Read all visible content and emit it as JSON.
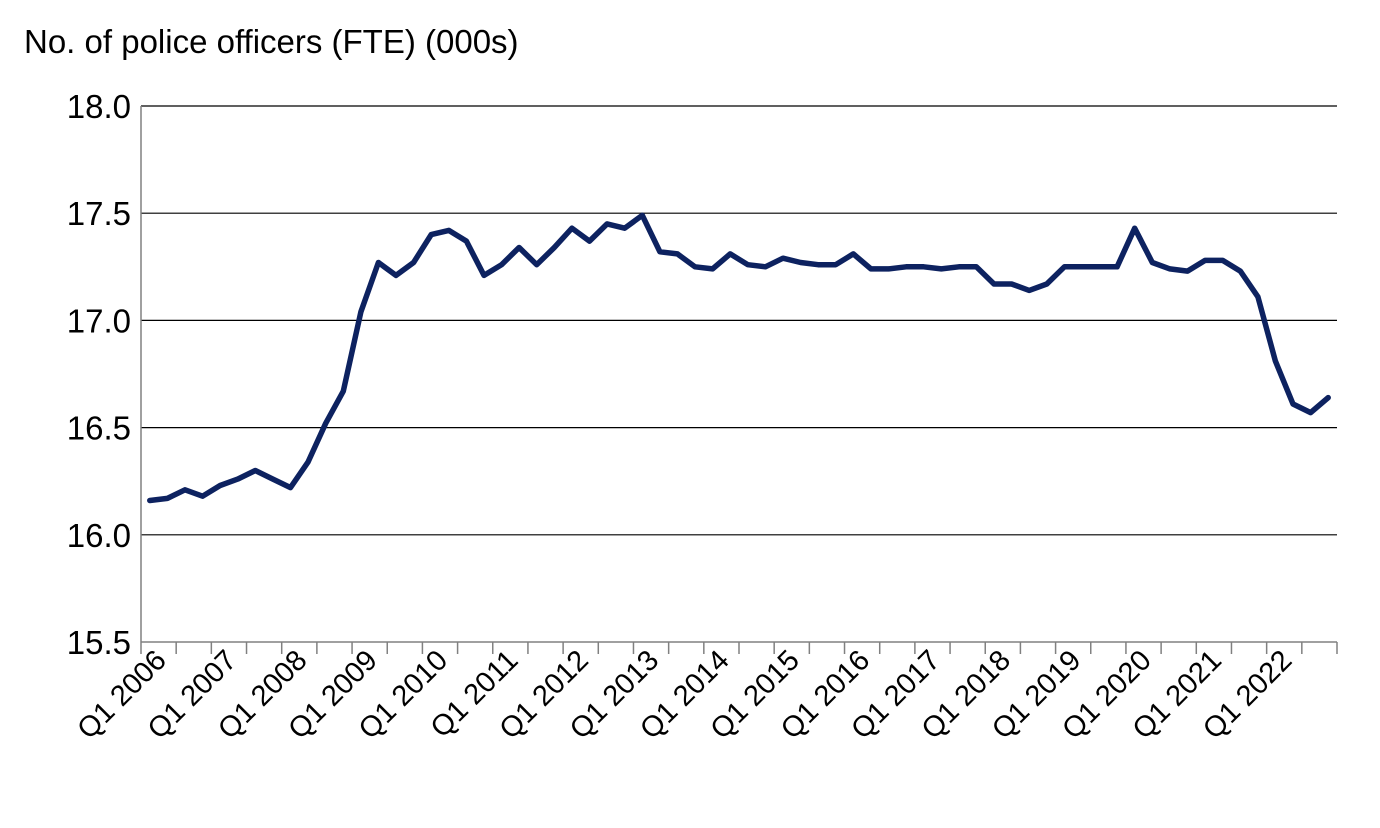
{
  "chart_data": {
    "type": "line",
    "title": "",
    "ylabel": "No. of police officers (FTE) (000s)",
    "xlabel": "",
    "ylim": [
      15.5,
      18.0
    ],
    "yticks": [
      15.5,
      16.0,
      16.5,
      17.0,
      17.5,
      18.0
    ],
    "grid": true,
    "legend": "none",
    "colors": {
      "series": "#0d2260",
      "grid": "#000000",
      "axis": "#808080"
    },
    "x_tick_labels": [
      "Q1 2006",
      "Q1 2007",
      "Q1 2008",
      "Q1 2009",
      "Q1 2010",
      "Q1 2011",
      "Q1 2012",
      "Q1 2013",
      "Q1 2014",
      "Q1 2015",
      "Q1 2016",
      "Q1 2017",
      "Q1 2018",
      "Q1 2019",
      "Q1 2020",
      "Q1 2021",
      "Q1 2022"
    ],
    "series": [
      {
        "values": [
          16.16,
          16.17,
          16.21,
          16.18,
          16.23,
          16.26,
          16.3,
          16.26,
          16.22,
          16.34,
          16.52,
          16.67,
          17.04,
          17.27,
          17.21,
          17.27,
          17.4,
          17.42,
          17.37,
          17.21,
          17.26,
          17.34,
          17.26,
          17.34,
          17.43,
          17.37,
          17.45,
          17.43,
          17.49,
          17.32,
          17.31,
          17.25,
          17.24,
          17.31,
          17.26,
          17.25,
          17.29,
          17.27,
          17.26,
          17.26,
          17.31,
          17.24,
          17.24,
          17.25,
          17.25,
          17.24,
          17.25,
          17.25,
          17.17,
          17.17,
          17.14,
          17.17,
          17.25,
          17.25,
          17.25,
          17.25,
          17.43,
          17.27,
          17.24,
          17.23,
          17.28,
          17.28,
          17.23,
          17.11,
          16.81,
          16.61,
          16.57,
          16.64
        ]
      }
    ]
  }
}
